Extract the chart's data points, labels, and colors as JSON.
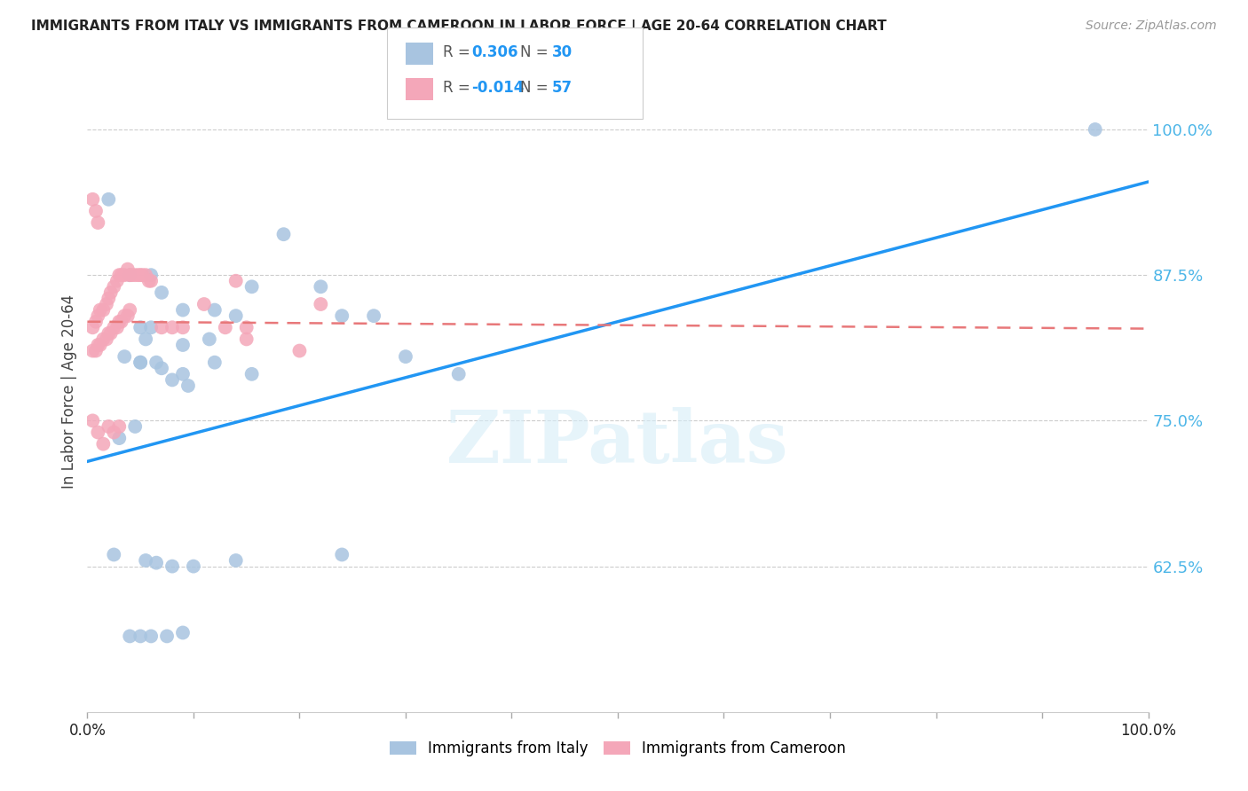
{
  "title": "IMMIGRANTS FROM ITALY VS IMMIGRANTS FROM CAMEROON IN LABOR FORCE | AGE 20-64 CORRELATION CHART",
  "source": "Source: ZipAtlas.com",
  "ylabel": "In Labor Force | Age 20-64",
  "watermark": "ZIPatlas",
  "italy_color": "#a8c4e0",
  "cameroon_color": "#f4a7b9",
  "italy_line_color": "#2196F3",
  "cameroon_line_color": "#e8787a",
  "italy_R": 0.306,
  "italy_N": 30,
  "cameroon_R": -0.014,
  "cameroon_N": 57,
  "xlim": [
    0.0,
    1.0
  ],
  "ylim": [
    0.5,
    1.05
  ],
  "yticks": [
    0.625,
    0.75,
    0.875,
    1.0
  ],
  "ytick_labels": [
    "62.5%",
    "75.0%",
    "87.5%",
    "100.0%"
  ],
  "italy_line_x0": 0.0,
  "italy_line_y0": 0.715,
  "italy_line_x1": 1.0,
  "italy_line_y1": 0.955,
  "cameroon_line_x0": 0.0,
  "cameroon_line_y0": 0.835,
  "cameroon_line_x1": 1.0,
  "cameroon_line_y1": 0.829,
  "italy_x": [
    0.02,
    0.04,
    0.06,
    0.07,
    0.09,
    0.12,
    0.14,
    0.155,
    0.185,
    0.22,
    0.27,
    0.3,
    0.35,
    0.24,
    0.95,
    0.05,
    0.06,
    0.09,
    0.12,
    0.155,
    0.05,
    0.07,
    0.09,
    0.115,
    0.05,
    0.065,
    0.08,
    0.095,
    0.035,
    0.055
  ],
  "italy_y": [
    0.94,
    0.875,
    0.875,
    0.86,
    0.845,
    0.845,
    0.84,
    0.865,
    0.91,
    0.865,
    0.84,
    0.805,
    0.79,
    0.84,
    1.0,
    0.83,
    0.83,
    0.815,
    0.8,
    0.79,
    0.8,
    0.795,
    0.79,
    0.82,
    0.8,
    0.8,
    0.785,
    0.78,
    0.805,
    0.82
  ],
  "italy_x_low": [
    0.025,
    0.055,
    0.065,
    0.08,
    0.1,
    0.14,
    0.24,
    0.04,
    0.05,
    0.06,
    0.075,
    0.09,
    0.03,
    0.045
  ],
  "italy_y_low": [
    0.635,
    0.63,
    0.628,
    0.625,
    0.625,
    0.63,
    0.635,
    0.565,
    0.565,
    0.565,
    0.565,
    0.568,
    0.735,
    0.745
  ],
  "cameroon_x": [
    0.005,
    0.008,
    0.01,
    0.012,
    0.015,
    0.018,
    0.02,
    0.022,
    0.025,
    0.028,
    0.03,
    0.032,
    0.035,
    0.038,
    0.04,
    0.042,
    0.045,
    0.048,
    0.05,
    0.052,
    0.055,
    0.058,
    0.06,
    0.005,
    0.008,
    0.01,
    0.012,
    0.015,
    0.018,
    0.02,
    0.022,
    0.025,
    0.028,
    0.03,
    0.032,
    0.035,
    0.038,
    0.04,
    0.005,
    0.008,
    0.01,
    0.07,
    0.08,
    0.09,
    0.11,
    0.13,
    0.15,
    0.22,
    0.005,
    0.01,
    0.015,
    0.02,
    0.025,
    0.03,
    0.15,
    0.14,
    0.2
  ],
  "cameroon_y": [
    0.83,
    0.835,
    0.84,
    0.845,
    0.845,
    0.85,
    0.855,
    0.86,
    0.865,
    0.87,
    0.875,
    0.875,
    0.875,
    0.88,
    0.875,
    0.875,
    0.875,
    0.875,
    0.875,
    0.875,
    0.875,
    0.87,
    0.87,
    0.81,
    0.81,
    0.815,
    0.815,
    0.82,
    0.82,
    0.825,
    0.825,
    0.83,
    0.83,
    0.835,
    0.835,
    0.84,
    0.84,
    0.845,
    0.94,
    0.93,
    0.92,
    0.83,
    0.83,
    0.83,
    0.85,
    0.83,
    0.82,
    0.85,
    0.75,
    0.74,
    0.73,
    0.745,
    0.74,
    0.745,
    0.83,
    0.87,
    0.81
  ]
}
